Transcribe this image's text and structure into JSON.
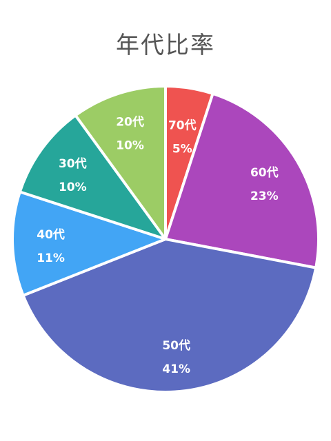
{
  "chart_data": {
    "type": "pie",
    "title": "年代比率",
    "slices": [
      {
        "label": "70代",
        "value": 5,
        "display": "5%",
        "color": "#ef5350"
      },
      {
        "label": "60代",
        "value": 23,
        "display": "23%",
        "color": "#ab47bc"
      },
      {
        "label": "50代",
        "value": 41,
        "display": "41%",
        "color": "#5c6bc0"
      },
      {
        "label": "40代",
        "value": 11,
        "display": "11%",
        "color": "#42a5f5"
      },
      {
        "label": "30代",
        "value": 10,
        "display": "10%",
        "color": "#26a69a"
      },
      {
        "label": "20代",
        "value": 10,
        "display": "10%",
        "color": "#9ccc65"
      }
    ]
  }
}
